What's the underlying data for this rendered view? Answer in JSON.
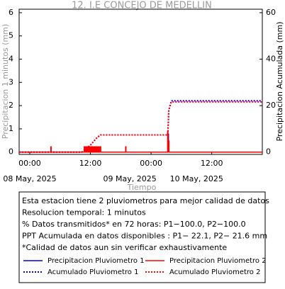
{
  "chart_data": {
    "type": "line",
    "title": "12. I.E CONCEJO DE MEDELLIN",
    "ylabel": "Precipitacion 1 minutos (mm)",
    "y2label": "Precipitacion Acumulada (mm)",
    "xlabel": "Tiempo",
    "xlim": [
      -2.1,
      46
    ],
    "xticks": [
      {
        "value": 0,
        "label": "00:00"
      },
      {
        "value": 12,
        "label": "12:00"
      },
      {
        "value": 24,
        "label": "00:00"
      },
      {
        "value": 36,
        "label": "12:00"
      }
    ],
    "date_labels": [
      {
        "value": 0,
        "label": "08 May, 2025"
      },
      {
        "value": 19.8,
        "label": "09 May, 2025"
      },
      {
        "value": 33,
        "label": "10 May, 2025"
      }
    ],
    "ylim": [
      -0.1,
      6.15
    ],
    "yticks": [
      0,
      1,
      2,
      3,
      4,
      5,
      6
    ],
    "y2lim": [
      -1,
      61.5
    ],
    "y2ticks": [
      0,
      20,
      40,
      60
    ],
    "series": [
      {
        "name": "Precipitacion Pluviometro 1",
        "color": "#0000cc",
        "axis": "y",
        "style": "bars",
        "x": [
          27.4
        ],
        "values": [
          0.8
        ]
      },
      {
        "name": "Precipitacion Pluviometro 2",
        "color": "#ff0000",
        "axis": "y",
        "style": "bars",
        "x": [
          4.2,
          10.8,
          11,
          11.2,
          11.4,
          11.6,
          11.8,
          12,
          12.2,
          12.4,
          12.6,
          12.8,
          13,
          13.2,
          13.4,
          13.6,
          13.8,
          14,
          19,
          27.3,
          27.5
        ],
        "values": [
          0.25,
          0.25,
          0.25,
          0.25,
          0.25,
          0.25,
          0.25,
          0.25,
          0.25,
          0.25,
          0.25,
          0.25,
          0.25,
          0.25,
          0.25,
          0.25,
          0.25,
          0.25,
          0.25,
          0.9,
          0.5
        ]
      },
      {
        "name": "Acumulado Pluviometro 1",
        "color": "#0000ff",
        "axis": "y2",
        "style": "dotted",
        "x": [
          -2.1,
          10.3,
          12,
          13.2,
          14,
          26,
          27.3,
          27.5,
          28,
          46
        ],
        "values": [
          0,
          0,
          3,
          6,
          7.4,
          7.4,
          7.4,
          18,
          22.1,
          22.1
        ]
      },
      {
        "name": "Acumulado Pluviometro 2",
        "color": "#ff0000",
        "axis": "y2",
        "style": "dotted",
        "x": [
          -2.1,
          10.3,
          12,
          13.2,
          14,
          26,
          27.3,
          27.5,
          28,
          46
        ],
        "values": [
          0,
          0,
          3,
          6,
          7.4,
          7.4,
          7.4,
          18,
          21.6,
          21.6
        ]
      }
    ]
  },
  "info": {
    "lines": [
      "Esta estacion tiene 2 pluviometros para mejor calidad de datos",
      "Resolucion temporal: 1 minutos",
      "% Datos transmitidos* en 72 horas: P1−100.0, P2−100.0",
      "PPT Acumulada en datos disponibles : P1− 22.1, P2− 21.6 mm",
      "*Calidad de datos aun sin verificar exhaustivamente"
    ]
  }
}
